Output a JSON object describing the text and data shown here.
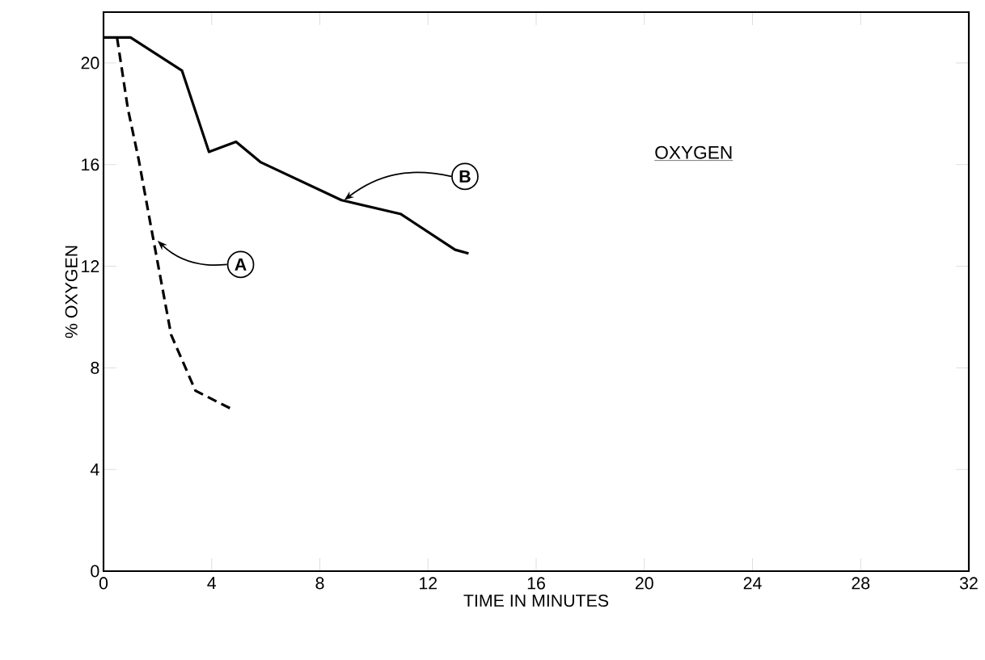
{
  "chart_data": {
    "type": "line",
    "title": "OXYGEN",
    "xlabel": "TIME IN MINUTES",
    "ylabel": "% OXYGEN",
    "xlim": [
      0,
      32
    ],
    "ylim": [
      0,
      22
    ],
    "xticks": [
      0,
      4,
      8,
      12,
      16,
      20,
      24,
      28,
      32
    ],
    "yticks": [
      0,
      4,
      8,
      12,
      16,
      20
    ],
    "grid": false,
    "series": [
      {
        "color": "#000000",
        "line_style": "dashed",
        "x": [
          0.5,
          0.9,
          1.3,
          1.8,
          2.5,
          3.4,
          4.7
        ],
        "values": [
          21,
          18.2,
          16.2,
          13.3,
          9.3,
          7.1,
          6.4
        ]
      },
      {
        "color": "#000000",
        "line_style": "solid",
        "x": [
          0,
          1,
          2.9,
          3.9,
          4.9,
          5.8,
          8.8,
          11,
          13,
          13.5
        ],
        "values": [
          21,
          21,
          19.7,
          16.5,
          16.9,
          16.1,
          14.6,
          14.05,
          12.65,
          12.5
        ]
      }
    ],
    "annotations": [
      {
        "text": "A",
        "x": 2,
        "y": 13
      },
      {
        "text": "B",
        "x": 8.9,
        "y": 14.6
      }
    ]
  }
}
